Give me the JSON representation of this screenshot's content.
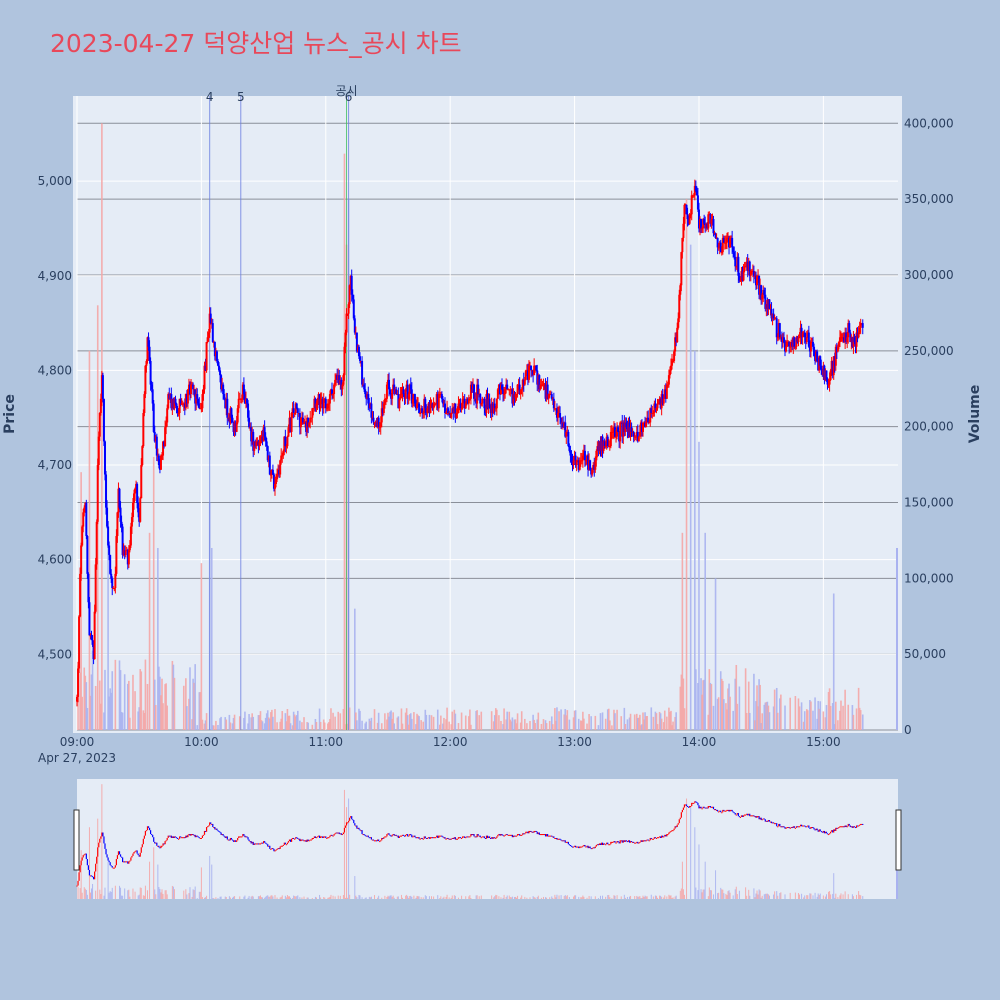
{
  "title": "2023-04-27 덕양산업 뉴스_공시 차트",
  "chart_data": {
    "type": "candlestick",
    "title": "2023-04-27 덕양산업 뉴스_공시 차트",
    "ylabel": "Price",
    "y2label": "Volume",
    "date_label": "Apr 27, 2023",
    "x_ticks": [
      "09:00",
      "10:00",
      "11:00",
      "12:00",
      "13:00",
      "14:00",
      "15:00"
    ],
    "y_ticks": [
      4500,
      4600,
      4700,
      4800,
      4900,
      5000
    ],
    "y_tick_labels": [
      "4,500",
      "4,600",
      "4,700",
      "4,800",
      "4,900",
      "5,000"
    ],
    "ylim": [
      4420,
      5090
    ],
    "y2_ticks": [
      0,
      50000,
      100000,
      150000,
      200000,
      250000,
      300000,
      350000,
      400000
    ],
    "y2_tick_labels": [
      "0",
      "50,000",
      "100,000",
      "150,000",
      "200,000",
      "250,000",
      "300,000",
      "350,000",
      "400,000"
    ],
    "y2lim": [
      0,
      418000
    ],
    "annotations": [
      {
        "label": "4",
        "time": "10:04"
      },
      {
        "label": "5",
        "time": "10:19"
      },
      {
        "label": "공시",
        "time": "11:10"
      },
      {
        "label": "6",
        "time": "11:11"
      }
    ],
    "up_color": "#ff0000",
    "down_color": "#0000ff",
    "price_path": [
      [
        "09:00",
        4450
      ],
      [
        "09:02",
        4620
      ],
      [
        "09:04",
        4660
      ],
      [
        "09:06",
        4520
      ],
      [
        "09:08",
        4500
      ],
      [
        "09:10",
        4700
      ],
      [
        "09:12",
        4800
      ],
      [
        "09:14",
        4660
      ],
      [
        "09:16",
        4580
      ],
      [
        "09:18",
        4560
      ],
      [
        "09:20",
        4680
      ],
      [
        "09:22",
        4610
      ],
      [
        "09:25",
        4600
      ],
      [
        "09:28",
        4680
      ],
      [
        "09:30",
        4640
      ],
      [
        "09:32",
        4760
      ],
      [
        "09:34",
        4840
      ],
      [
        "09:37",
        4740
      ],
      [
        "09:40",
        4690
      ],
      [
        "09:44",
        4770
      ],
      [
        "09:50",
        4760
      ],
      [
        "09:55",
        4780
      ],
      [
        "10:00",
        4760
      ],
      [
        "10:04",
        4860
      ],
      [
        "10:08",
        4800
      ],
      [
        "10:12",
        4760
      ],
      [
        "10:16",
        4740
      ],
      [
        "10:20",
        4780
      ],
      [
        "10:25",
        4720
      ],
      [
        "10:30",
        4730
      ],
      [
        "10:35",
        4680
      ],
      [
        "10:40",
        4720
      ],
      [
        "10:45",
        4760
      ],
      [
        "10:50",
        4740
      ],
      [
        "10:55",
        4770
      ],
      [
        "11:00",
        4760
      ],
      [
        "11:05",
        4790
      ],
      [
        "11:08",
        4780
      ],
      [
        "11:10",
        4850
      ],
      [
        "11:12",
        4900
      ],
      [
        "11:14",
        4840
      ],
      [
        "11:17",
        4800
      ],
      [
        "11:20",
        4770
      ],
      [
        "11:25",
        4740
      ],
      [
        "11:30",
        4780
      ],
      [
        "11:35",
        4770
      ],
      [
        "11:40",
        4780
      ],
      [
        "11:45",
        4760
      ],
      [
        "11:50",
        4760
      ],
      [
        "11:55",
        4770
      ],
      [
        "12:00",
        4750
      ],
      [
        "12:05",
        4760
      ],
      [
        "12:10",
        4780
      ],
      [
        "12:15",
        4770
      ],
      [
        "12:20",
        4760
      ],
      [
        "12:25",
        4780
      ],
      [
        "12:30",
        4770
      ],
      [
        "12:35",
        4790
      ],
      [
        "12:40",
        4800
      ],
      [
        "12:45",
        4780
      ],
      [
        "12:50",
        4760
      ],
      [
        "12:55",
        4740
      ],
      [
        "13:00",
        4700
      ],
      [
        "13:05",
        4710
      ],
      [
        "13:08",
        4690
      ],
      [
        "13:12",
        4720
      ],
      [
        "13:18",
        4730
      ],
      [
        "13:25",
        4740
      ],
      [
        "13:30",
        4730
      ],
      [
        "13:35",
        4750
      ],
      [
        "13:40",
        4760
      ],
      [
        "13:45",
        4780
      ],
      [
        "13:48",
        4820
      ],
      [
        "13:50",
        4850
      ],
      [
        "13:53",
        4980
      ],
      [
        "13:55",
        4960
      ],
      [
        "13:58",
        5000
      ],
      [
        "14:00",
        4950
      ],
      [
        "14:05",
        4960
      ],
      [
        "14:10",
        4930
      ],
      [
        "14:15",
        4940
      ],
      [
        "14:20",
        4900
      ],
      [
        "14:25",
        4910
      ],
      [
        "14:30",
        4880
      ],
      [
        "14:35",
        4860
      ],
      [
        "14:40",
        4830
      ],
      [
        "14:45",
        4830
      ],
      [
        "14:50",
        4840
      ],
      [
        "14:55",
        4820
      ],
      [
        "15:00",
        4800
      ],
      [
        "15:03",
        4790
      ],
      [
        "15:05",
        4810
      ],
      [
        "15:08",
        4830
      ],
      [
        "15:12",
        4840
      ],
      [
        "15:15",
        4830
      ],
      [
        "15:17",
        4840
      ],
      [
        "15:19",
        4845
      ]
    ],
    "volume_spikes": [
      [
        "09:02",
        170000,
        "up"
      ],
      [
        "09:06",
        250000,
        "up"
      ],
      [
        "09:10",
        280000,
        "up"
      ],
      [
        "09:12",
        400000,
        "up"
      ],
      [
        "09:15",
        130000,
        "down"
      ],
      [
        "09:35",
        130000,
        "up"
      ],
      [
        "09:37",
        180000,
        "up"
      ],
      [
        "09:39",
        120000,
        "down"
      ],
      [
        "10:00",
        110000,
        "up"
      ],
      [
        "10:04",
        150000,
        "down"
      ],
      [
        "10:05",
        120000,
        "down"
      ],
      [
        "11:09",
        380000,
        "up"
      ],
      [
        "11:10",
        320000,
        "up"
      ],
      [
        "11:11",
        350000,
        "down"
      ],
      [
        "11:14",
        80000,
        "down"
      ],
      [
        "13:52",
        130000,
        "up"
      ],
      [
        "13:54",
        350000,
        "up"
      ],
      [
        "13:56",
        320000,
        "down"
      ],
      [
        "13:58",
        250000,
        "down"
      ],
      [
        "14:00",
        190000,
        "down"
      ],
      [
        "14:03",
        130000,
        "down"
      ],
      [
        "14:08",
        100000,
        "down"
      ],
      [
        "15:05",
        90000,
        "down"
      ],
      [
        "15:24",
        120000,
        "down"
      ]
    ]
  }
}
